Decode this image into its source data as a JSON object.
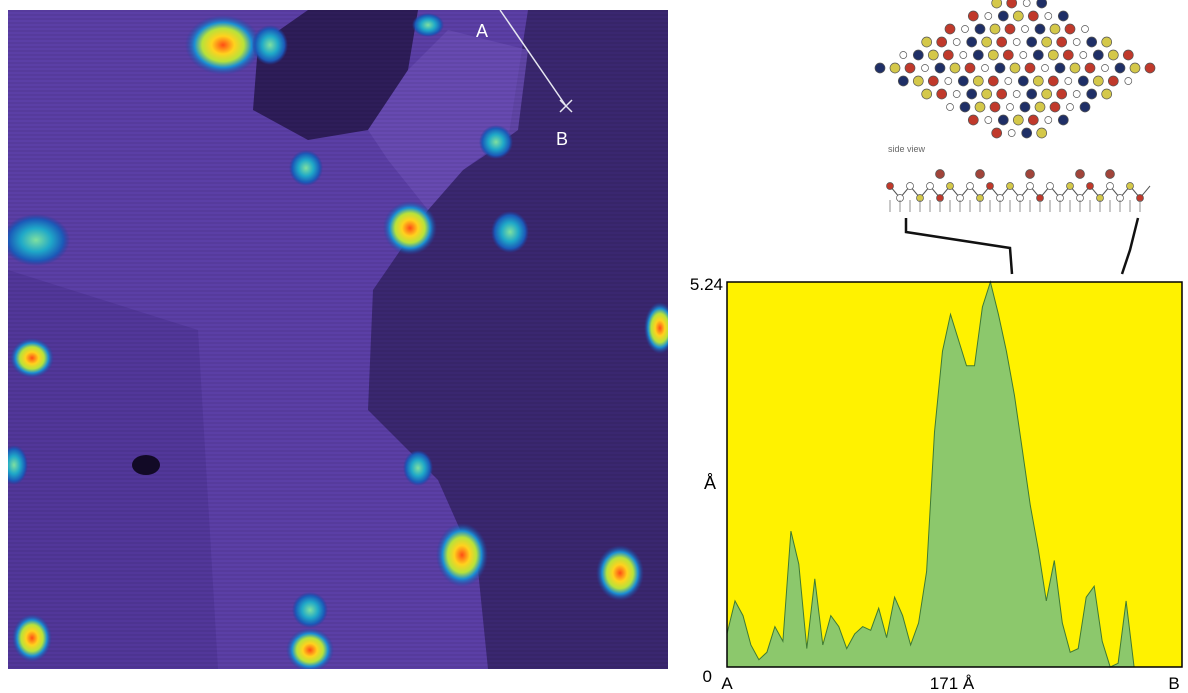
{
  "stm_image": {
    "marker_a": "A",
    "marker_b": "B",
    "colors": {
      "terrace_light": "#5b3fa6",
      "terrace_dark": "#2e1d59",
      "blob_core": "#ff4d14",
      "blob_mid": "#e8e22a",
      "blob_edge": "#1b8fd4"
    }
  },
  "molecule_diagram": {
    "caption": "side view"
  },
  "chart_data": {
    "type": "area",
    "title": "",
    "xlabel": "",
    "ylabel": "Å",
    "x_tick_labels": [
      "A",
      "171 Å",
      "B"
    ],
    "y_tick_labels": [
      "0",
      "5.24"
    ],
    "ylim": [
      0,
      5.24
    ],
    "xlim": [
      0,
      342
    ],
    "fill_color": "#8cc86c",
    "background_color": "#fff200",
    "series": [
      {
        "x": [
          0,
          6,
          12,
          18,
          24,
          30,
          36,
          42,
          48,
          54,
          60,
          66,
          72,
          78,
          84,
          90,
          96,
          102,
          108,
          114,
          120,
          126,
          132,
          138,
          144,
          150,
          156,
          162,
          168,
          174,
          180,
          186,
          192,
          198,
          204,
          210,
          216,
          222,
          228,
          234,
          240,
          246,
          252,
          258,
          264,
          270,
          276,
          282,
          288,
          294,
          300,
          306,
          312,
          318,
          324,
          330,
          336,
          342
        ],
        "y": [
          0.45,
          0.9,
          0.7,
          0.3,
          0.1,
          0.2,
          0.55,
          0.35,
          1.85,
          1.4,
          0.25,
          1.2,
          0.3,
          0.7,
          0.55,
          0.25,
          0.45,
          0.55,
          0.5,
          0.8,
          0.4,
          0.95,
          0.7,
          0.3,
          0.6,
          1.3,
          3.2,
          4.3,
          4.8,
          4.45,
          4.1,
          4.1,
          4.9,
          5.24,
          4.8,
          4.3,
          3.7,
          2.95,
          2.2,
          1.6,
          0.9,
          1.45,
          0.6,
          0.2,
          0.25,
          0.95,
          1.1,
          0.35,
          0.0,
          0.05,
          0.9,
          0.0,
          0.0,
          0.0,
          0.0,
          0.0,
          0.0,
          0.0
        ]
      }
    ]
  }
}
